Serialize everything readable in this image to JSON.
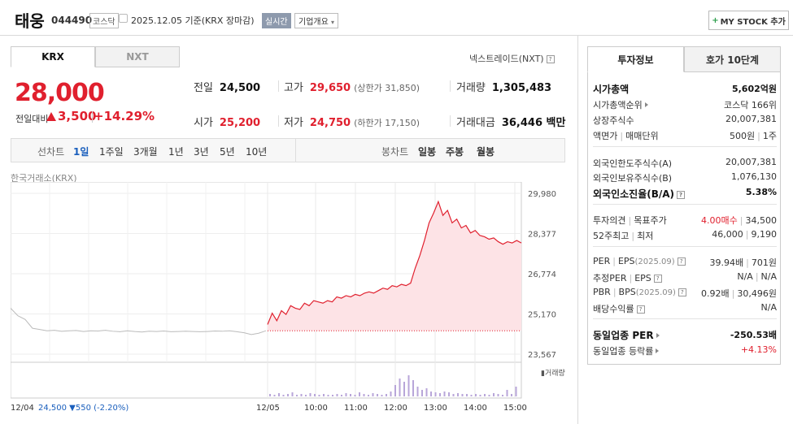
{
  "header": {
    "name": "태웅",
    "code": "044490",
    "market": "코스닥",
    "date": "2025.12.05 기준(KRX 장마감)",
    "realtime": "실시간",
    "corp_info": "기업개요",
    "mystock": "MY STOCK 추가"
  },
  "tabs": {
    "krx": "KRX",
    "nxt": "NXT",
    "nextrade": "넥스트레이드(NXT)"
  },
  "price": {
    "current": "28,000",
    "prev_label": "전일대비",
    "change": "3,500",
    "change_pct": "+14.29%"
  },
  "stats": {
    "prev_close_label": "전일",
    "prev_close": "24,500",
    "high_label": "고가",
    "high": "29,650",
    "upper_limit": "(상한가 31,850)",
    "volume_label": "거래량",
    "volume": "1,305,483",
    "open_label": "시가",
    "open": "25,200",
    "low_label": "저가",
    "low": "24,750",
    "lower_limit": "(하한가 17,150)",
    "amount_label": "거래대금",
    "amount": "36,446 백만"
  },
  "periods": {
    "line_head": "선차트",
    "line": [
      "1일",
      "1주일",
      "3개월",
      "1년",
      "3년",
      "5년",
      "10년"
    ],
    "candle_head": "봉차트",
    "candle": [
      "일봉",
      "주봉",
      "월봉"
    ]
  },
  "exchange_label": "한국거래소(KRX)",
  "chart_data": {
    "type": "line",
    "y_ticks": [
      "29,980",
      "28,377",
      "26,774",
      "25,170",
      "23,567"
    ],
    "ylim": [
      23567,
      29980
    ],
    "x_ticks": [
      "12/04",
      "12/05",
      "10:00",
      "11:00",
      "12:00",
      "13:00",
      "14:00",
      "15:00"
    ],
    "volume_label": "거래량",
    "prev_close": 24500,
    "prev_day_summary": {
      "date": "12/04",
      "close": "24,500",
      "change": "550",
      "change_pct": "(-2.20%)"
    },
    "prev_day_series": [
      25400,
      25100,
      24950,
      24600,
      24550,
      24500,
      24520,
      24480,
      24500,
      24510,
      24470,
      24500,
      24490,
      24520,
      24480,
      24460,
      24500,
      24470,
      24450,
      24480,
      24470,
      24490,
      24460,
      24470,
      24480,
      24470,
      24460,
      24470,
      24490,
      24480,
      24500,
      24460,
      24420,
      24350,
      24400,
      24500
    ],
    "today_series": [
      24750,
      25200,
      24900,
      25300,
      25150,
      25500,
      25400,
      25350,
      25600,
      25500,
      25700,
      25650,
      25600,
      25700,
      25650,
      25850,
      25800,
      25900,
      25850,
      25950,
      25900,
      26000,
      26050,
      26000,
      26100,
      26200,
      26150,
      26300,
      26250,
      26350,
      26300,
      26400,
      27000,
      27500,
      28100,
      28800,
      29200,
      29650,
      29100,
      29300,
      28800,
      28950,
      28600,
      28700,
      28400,
      28500,
      28300,
      28250,
      28150,
      28200,
      28050,
      27950,
      28050,
      28000,
      28100,
      28000
    ]
  },
  "right": {
    "tab_invest": "투자정보",
    "tab_quote": "호가 10단계",
    "rows": {
      "mcap_k": "시가총액",
      "mcap_v": "5,602억원",
      "rank_k": "시가총액순위",
      "rank_v": "코스닥 166위",
      "shares_k": "상장주식수",
      "shares_v": "20,007,381",
      "par_k": "액면가",
      "unit_k": "매매단위",
      "par_v": "500원",
      "unit_v": "1주",
      "forlim_k": "외국인한도주식수(A)",
      "forlim_v": "20,007,381",
      "forown_k": "외국인보유주식수(B)",
      "forown_v": "1,076,130",
      "forrate_k": "외국인소진율(B/A)",
      "forrate_v": "5.38%",
      "opinion_k": "투자의견",
      "target_k": "목표주가",
      "opinion_v": "4.00매수",
      "target_v": "34,500",
      "w52_k": "52주최고",
      "w52low_k": "최저",
      "w52_v": "46,000",
      "w52low_v": "9,190",
      "per_k": "PER",
      "eps_k": "EPS",
      "eps_date": "(2025.09)",
      "per_v": "39.94배",
      "eps_v": "701원",
      "eper_k": "추정PER",
      "eeps_k": "EPS",
      "eper_v": "N/A",
      "eeps_v": "N/A",
      "pbr_k": "PBR",
      "bps_k": "BPS",
      "bps_date": "(2025.09)",
      "pbr_v": "0.92배",
      "bps_v": "30,496원",
      "div_k": "배당수익률",
      "div_v": "N/A",
      "ind_per_k": "동일업종 PER",
      "ind_per_v": "-250.53배",
      "ind_chg_k": "동일업종 등락률",
      "ind_chg_v": "+4.13%"
    }
  },
  "colors": {
    "up": "#e0202e",
    "down": "#1a5fbd",
    "fill": "#fde3e6"
  }
}
